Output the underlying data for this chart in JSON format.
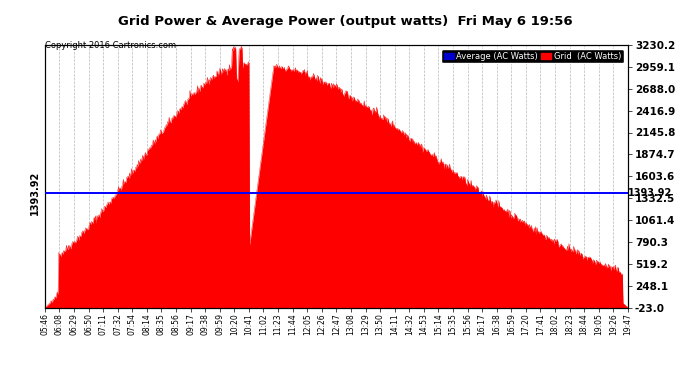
{
  "title": "Grid Power & Average Power (output watts)  Fri May 6 19:56",
  "copyright": "Copyright 2016 Cartronics.com",
  "ylabel_right_values": [
    3230.2,
    2959.1,
    2688.0,
    2416.9,
    2145.8,
    1874.7,
    1603.6,
    1332.5,
    1061.4,
    790.3,
    519.2,
    248.1,
    -23.0
  ],
  "average_line_value": 1393.92,
  "average_label": "1393.92",
  "background_color": "#ffffff",
  "plot_bg_color": "#ffffff",
  "grid_color": "#b0b0b0",
  "fill_color": "#ff0000",
  "line_color": "#ff0000",
  "average_line_color": "#0000ff",
  "legend_avg_color": "#0000cd",
  "legend_grid_color": "#ff0000",
  "legend_avg_label": "Average (AC Watts)",
  "legend_grid_label": "Grid  (AC Watts)",
  "x_tick_labels": [
    "05:46",
    "06:08",
    "06:29",
    "06:50",
    "07:11",
    "07:32",
    "07:54",
    "08:14",
    "08:35",
    "08:56",
    "09:17",
    "09:38",
    "09:59",
    "10:20",
    "10:41",
    "11:02",
    "11:23",
    "11:44",
    "12:05",
    "12:26",
    "12:47",
    "13:08",
    "13:29",
    "13:50",
    "14:11",
    "14:32",
    "14:53",
    "15:14",
    "15:35",
    "15:56",
    "16:17",
    "16:38",
    "16:59",
    "17:20",
    "17:41",
    "18:02",
    "18:23",
    "18:44",
    "19:05",
    "19:26",
    "19:47"
  ],
  "ymin": -23.0,
  "ymax": 3230.2
}
